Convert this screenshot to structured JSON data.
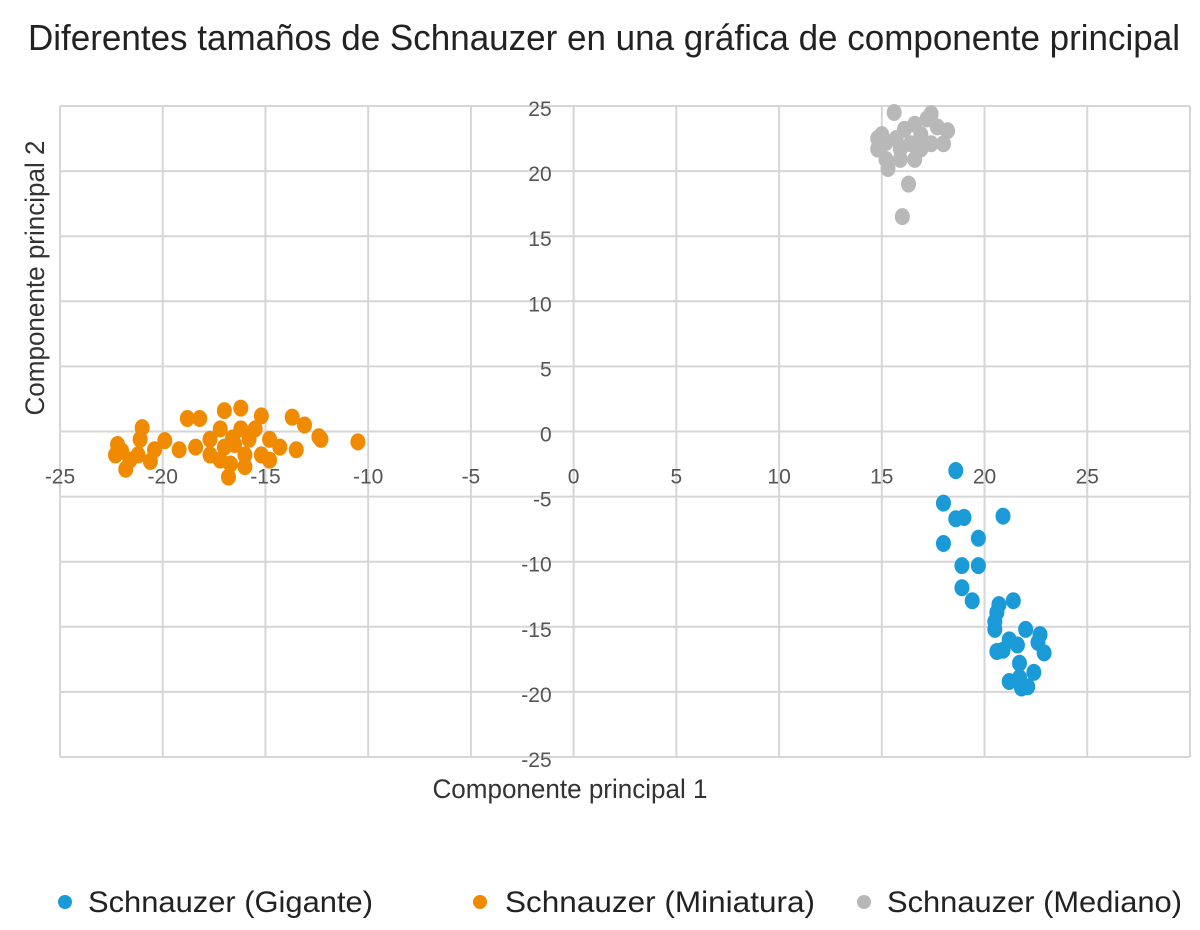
{
  "chart_data": {
    "type": "scatter",
    "title": "Diferentes tamaños de Schnauzer en una gráfica de componente principal",
    "xlabel": "Componente principal 1",
    "ylabel": "Componente principal 2",
    "xlim": [
      -25,
      30
    ],
    "ylim": [
      -25,
      25
    ],
    "xticks": [
      -25,
      -20,
      -15,
      -10,
      -5,
      0,
      5,
      10,
      15,
      20,
      25
    ],
    "yticks": [
      25,
      20,
      15,
      10,
      5,
      0,
      -5,
      -10,
      -15,
      -20,
      -25
    ],
    "grid": true,
    "legend_position": "bottom",
    "series": [
      {
        "name": "Schnauzer (Gigante)",
        "color": "#1b9ad8",
        "points": [
          [
            18.6,
            -3.0
          ],
          [
            18.0,
            -5.5
          ],
          [
            18.6,
            -6.7
          ],
          [
            19.0,
            -6.6
          ],
          [
            20.9,
            -6.5
          ],
          [
            19.7,
            -8.2
          ],
          [
            18.0,
            -8.6
          ],
          [
            18.9,
            -10.3
          ],
          [
            19.7,
            -10.3
          ],
          [
            18.9,
            -12.0
          ],
          [
            19.4,
            -13.0
          ],
          [
            21.4,
            -13.0
          ],
          [
            20.7,
            -13.3
          ],
          [
            20.6,
            -13.9
          ],
          [
            20.5,
            -14.6
          ],
          [
            20.5,
            -15.2
          ],
          [
            22.0,
            -15.2
          ],
          [
            22.7,
            -15.6
          ],
          [
            22.6,
            -16.2
          ],
          [
            22.9,
            -17.0
          ],
          [
            21.2,
            -16.0
          ],
          [
            21.6,
            -16.4
          ],
          [
            20.6,
            -16.9
          ],
          [
            20.9,
            -16.8
          ],
          [
            21.7,
            -17.8
          ],
          [
            22.4,
            -18.5
          ],
          [
            21.2,
            -19.2
          ],
          [
            21.8,
            -19.7
          ],
          [
            22.1,
            -19.6
          ],
          [
            21.7,
            -18.9
          ]
        ]
      },
      {
        "name": "Schnauzer (Miniatura)",
        "color": "#f08a00",
        "points": [
          [
            -10.5,
            -0.8
          ],
          [
            -12.4,
            -0.4
          ],
          [
            -13.7,
            1.1
          ],
          [
            -13.1,
            0.5
          ],
          [
            -15.2,
            1.2
          ],
          [
            -16.2,
            1.8
          ],
          [
            -17.0,
            1.6
          ],
          [
            -18.2,
            1.0
          ],
          [
            -18.8,
            1.0
          ],
          [
            -21.0,
            0.3
          ],
          [
            -22.2,
            -1.0
          ],
          [
            -22.3,
            -1.8
          ],
          [
            -21.6,
            -2.2
          ],
          [
            -21.8,
            -2.9
          ],
          [
            -20.6,
            -2.3
          ],
          [
            -19.9,
            -0.7
          ],
          [
            -19.2,
            -1.4
          ],
          [
            -18.4,
            -1.2
          ],
          [
            -17.7,
            -1.8
          ],
          [
            -17.2,
            -2.2
          ],
          [
            -16.7,
            -2.5
          ],
          [
            -16.8,
            -3.5
          ],
          [
            -16.0,
            -2.7
          ],
          [
            -16.2,
            0.2
          ],
          [
            -15.8,
            -0.6
          ],
          [
            -14.8,
            -0.6
          ],
          [
            -14.3,
            -1.2
          ],
          [
            -13.5,
            -1.4
          ],
          [
            -12.3,
            -0.6
          ],
          [
            -15.2,
            -1.8
          ],
          [
            -16.5,
            -1.0
          ],
          [
            -17.2,
            0.2
          ],
          [
            -17.7,
            -0.6
          ],
          [
            -20.4,
            -1.4
          ],
          [
            -21.1,
            -0.6
          ],
          [
            -14.8,
            -2.2
          ],
          [
            -16.0,
            -1.8
          ],
          [
            -17.0,
            -1.2
          ],
          [
            -21.2,
            -1.8
          ],
          [
            -22.0,
            -1.5
          ],
          [
            -15.5,
            0.2
          ],
          [
            -16.6,
            -0.5
          ]
        ]
      },
      {
        "name": "Schnauzer (Mediano)",
        "color": "#b8b8b8",
        "points": [
          [
            15.6,
            24.5
          ],
          [
            15.0,
            22.8
          ],
          [
            14.8,
            21.7
          ],
          [
            15.2,
            20.9
          ],
          [
            15.3,
            20.2
          ],
          [
            15.9,
            21.7
          ],
          [
            16.1,
            23.2
          ],
          [
            16.6,
            23.6
          ],
          [
            17.2,
            24.0
          ],
          [
            17.7,
            23.4
          ],
          [
            18.2,
            23.1
          ],
          [
            17.4,
            22.1
          ],
          [
            16.9,
            21.7
          ],
          [
            16.6,
            20.9
          ],
          [
            16.4,
            22.1
          ],
          [
            15.7,
            22.5
          ],
          [
            15.2,
            22.2
          ],
          [
            15.9,
            20.9
          ],
          [
            16.3,
            19.0
          ],
          [
            16.0,
            16.5
          ],
          [
            18.0,
            22.1
          ],
          [
            17.4,
            24.4
          ],
          [
            14.8,
            22.5
          ],
          [
            16.9,
            22.8
          ]
        ]
      }
    ]
  }
}
